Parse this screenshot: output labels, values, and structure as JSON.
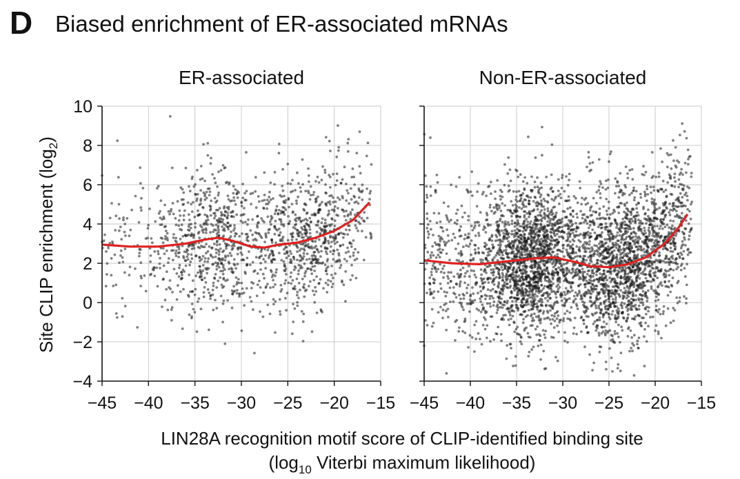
{
  "figure": {
    "panel_letter": "D",
    "title": "Biased enrichment of ER-associated mRNAs"
  },
  "colors": {
    "points": "#1a1a1a",
    "trend": "#e02020",
    "grid": "#c8c8c8",
    "axis": "#111111"
  },
  "chart_data": [
    {
      "type": "scatter",
      "title": "ER-associated",
      "ylabel": "Site CLIP enrichment (log2)",
      "xlabel": "LIN28A recognition motif score of CLIP-identified binding site (log10 Viterbi maximum likelihood)",
      "xlim": [
        -45,
        -15
      ],
      "ylim": [
        -4,
        10
      ],
      "xticks": [
        "−45",
        "−40",
        "−35",
        "−30",
        "−25",
        "−20",
        "−15"
      ],
      "yticks": [
        "−4",
        "−2",
        "0",
        "2",
        "4",
        "6",
        "8",
        "10"
      ],
      "grid": true,
      "point_count_estimate": 1500,
      "scatter_summary": {
        "x_range": [
          -45,
          -16
        ],
        "y_range": [
          -3.5,
          10
        ],
        "dense_clusters": [
          {
            "x": -33.5,
            "y": 2.7
          },
          {
            "x": -23,
            "y": 3.3
          }
        ]
      },
      "series": [
        {
          "name": "",
          "kind": "trend",
          "x": [
            -45,
            -42,
            -39,
            -36,
            -34,
            -32.5,
            -31,
            -29,
            -27.5,
            -26,
            -24,
            -22,
            -20,
            -18,
            -16.2
          ],
          "y": [
            2.95,
            2.85,
            2.85,
            3.0,
            3.2,
            3.3,
            3.15,
            2.85,
            2.8,
            2.95,
            3.05,
            3.3,
            3.65,
            4.2,
            5.1
          ]
        }
      ]
    },
    {
      "type": "scatter",
      "title": "Non-ER-associated",
      "xlim": [
        -45,
        -15
      ],
      "ylim": [
        -4,
        10
      ],
      "xticks": [
        "−45",
        "−40",
        "−35",
        "−30",
        "−25",
        "−20",
        "−15"
      ],
      "grid": true,
      "point_count_estimate": 4000,
      "scatter_summary": {
        "x_range": [
          -45,
          -16
        ],
        "y_range": [
          -3.7,
          9.9
        ],
        "dense_clusters": [
          {
            "x": -33.5,
            "y": 2.0
          },
          {
            "x": -23,
            "y": 2.2
          }
        ]
      },
      "series": [
        {
          "name": "",
          "kind": "trend",
          "x": [
            -45,
            -42,
            -39,
            -36,
            -33,
            -31,
            -29,
            -27,
            -25,
            -23,
            -21,
            -19,
            -17.5,
            -16.5
          ],
          "y": [
            2.15,
            2.0,
            1.95,
            2.1,
            2.25,
            2.3,
            2.1,
            1.85,
            1.8,
            1.95,
            2.3,
            3.0,
            3.8,
            4.5
          ]
        }
      ]
    }
  ],
  "labels": {
    "ylabel_main": "Site CLIP enrichment  (log",
    "ylabel_sub": "2",
    "ylabel_close": ")",
    "xlabel_line1": "LIN28A recognition motif score of CLIP-identified binding site",
    "xlabel_line2_pre": "(log",
    "xlabel_line2_sub": "10",
    "xlabel_line2_post": " Viterbi maximum likelihood)"
  }
}
